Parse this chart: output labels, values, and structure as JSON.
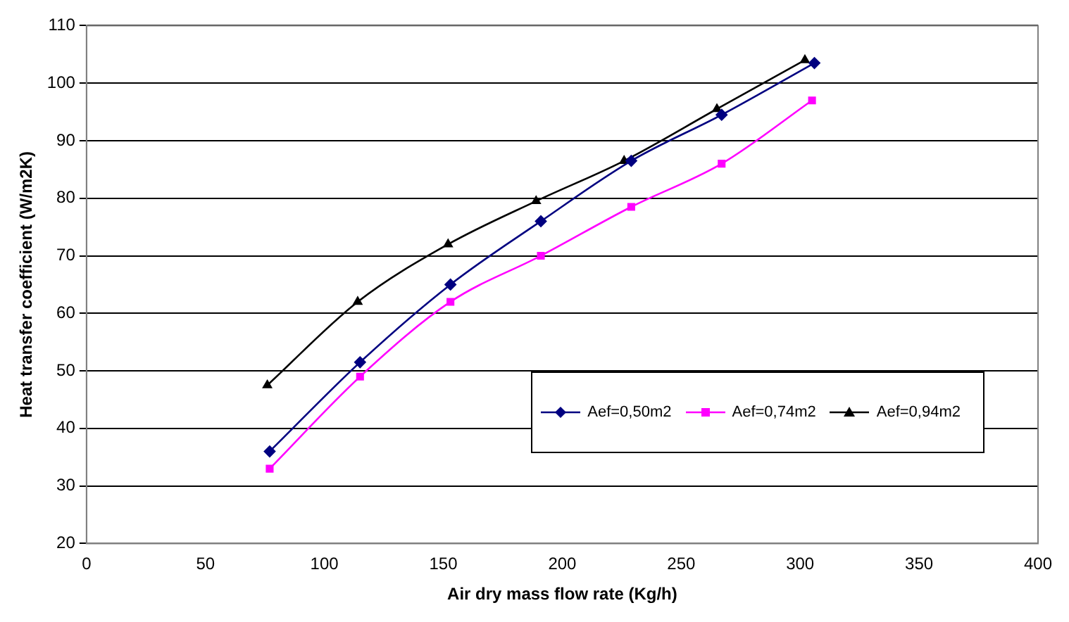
{
  "chart_data": {
    "type": "line",
    "xlabel": "Air dry mass flow rate (Kg/h)",
    "ylabel": "Heat transfer coefficient (W/m2K)",
    "xlim": [
      0,
      400
    ],
    "xticks": [
      0,
      50,
      100,
      150,
      200,
      250,
      300,
      350,
      400
    ],
    "ylim": [
      20,
      110
    ],
    "yticks": [
      20,
      30,
      40,
      50,
      60,
      70,
      80,
      90,
      100,
      110
    ],
    "grid": "y",
    "legend": "bottom right",
    "series": [
      {
        "name": "Aef=0,50m2",
        "color": "#000080",
        "marker": "diamond",
        "x": [
          77,
          115,
          153,
          191,
          229,
          267,
          306
        ],
        "values": [
          36,
          51.5,
          65,
          76,
          86.5,
          94.5,
          103.5
        ]
      },
      {
        "name": "Aef=0,74m2",
        "color": "#ff00ff",
        "marker": "square",
        "x": [
          77,
          115,
          153,
          191,
          229,
          267,
          305
        ],
        "values": [
          33,
          49,
          62,
          70,
          78.5,
          86,
          97
        ]
      },
      {
        "name": "Aef=0,94m2",
        "color": "#000000",
        "marker": "triangle",
        "x": [
          76,
          114,
          152,
          189,
          226,
          265,
          302
        ],
        "values": [
          47.5,
          62,
          72,
          79.5,
          86.5,
          95.5,
          104
        ]
      }
    ]
  }
}
